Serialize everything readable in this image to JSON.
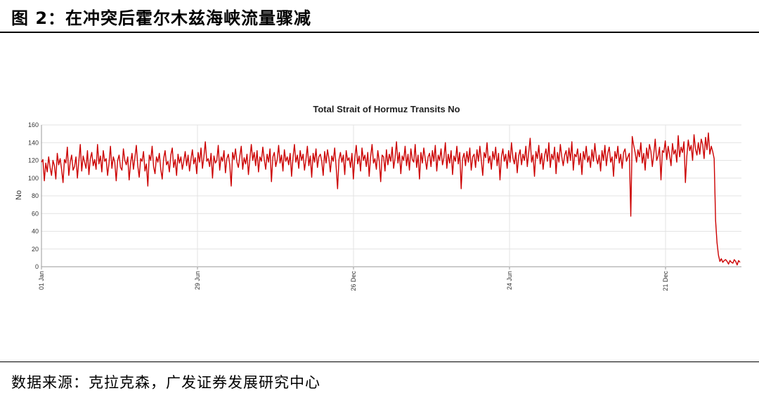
{
  "figure": {
    "title": "图 2：在冲突后霍尔木兹海峡流量骤减",
    "source": "数据来源：克拉克森，广发证券发展研究中心"
  },
  "chart_data": {
    "type": "line",
    "title": "Total Strait of Hormuz Transits No",
    "xlabel": "",
    "ylabel": "No",
    "ylim": [
      0,
      160
    ],
    "y_ticks": [
      0,
      20,
      40,
      60,
      80,
      100,
      120,
      140,
      160
    ],
    "x_ticks": [
      "01 Jan",
      "29 Jun",
      "26 Dec",
      "24 Jun",
      "21 Dec"
    ],
    "grid": true,
    "line_color": "#cc0000",
    "series": [
      {
        "values": [
          118,
          121,
          97,
          117,
          107,
          124,
          112,
          103,
          120,
          114,
          99,
          128,
          115,
          122,
          110,
          95,
          121,
          117,
          135,
          103,
          118,
          126,
          109,
          113,
          124,
          100,
          119,
          138,
          108,
          125,
          118,
          111,
          131,
          104,
          122,
          129,
          114,
          121,
          110,
          138,
          116,
          125,
          107,
          131,
          119,
          122,
          103,
          117,
          136,
          111,
          124,
          118,
          97,
          120,
          126,
          112,
          109,
          133,
          120,
          115,
          124,
          98,
          117,
          128,
          110,
          123,
          137,
          114,
          101,
          122,
          119,
          130,
          108,
          116,
          91,
          126,
          120,
          136,
          113,
          105,
          124,
          118,
          128,
          110,
          99,
          122,
          131,
          115,
          119,
          107,
          126,
          134,
          112,
          121,
          103,
          127,
          117,
          124,
          110,
          119,
          130,
          114,
          126,
          108,
          121,
          132,
          116,
          123,
          105,
          129,
          118,
          134,
          111,
          124,
          141,
          119,
          122,
          113,
          128,
          100,
          125,
          117,
          120,
          137,
          109,
          124,
          119,
          131,
          106,
          122,
          127,
          115,
          91,
          129,
          121,
          133,
          118,
          112,
          125,
          136,
          110,
          123,
          116,
          127,
          104,
          122,
          138,
          120,
          129,
          114,
          131,
          107,
          124,
          119,
          135,
          121,
          110,
          127,
          118,
          133,
          96,
          124,
          129,
          113,
          121,
          137,
          117,
          126,
          108,
          132,
          119,
          124,
          115,
          128,
          102,
          123,
          138,
          118,
          126,
          111,
          131,
          120,
          127,
          109,
          121,
          136,
          114,
          125,
          101,
          128,
          118,
          133,
          112,
          124,
          127,
          119,
          103,
          130,
          117,
          132,
          122,
          107,
          125,
          119,
          134,
          113,
          88,
          121,
          129,
          118,
          126,
          104,
          131,
          120,
          123,
          112,
          128,
          99,
          123,
          137,
          116,
          125,
          108,
          134,
          120,
          126,
          113,
          129,
          102,
          124,
          138,
          117,
          122,
          110,
          131,
          119,
          96,
          126,
          124,
          108,
          132,
          115,
          127,
          119,
          135,
          111,
          123,
          141,
          117,
          129,
          105,
          125,
          120,
          136,
          114,
          127,
          109,
          133,
          121,
          118,
          138,
          112,
          126,
          99,
          129,
          117,
          134,
          122,
          110,
          124,
          128,
          113,
          131,
          119,
          137,
          108,
          126,
          120,
          133,
          115,
          123,
          140,
          111,
          127,
          117,
          131,
          104,
          125,
          119,
          136,
          116,
          129,
          88,
          122,
          128,
          114,
          130,
          118,
          134,
          109,
          124,
          127,
          112,
          132,
          119,
          136,
          120,
          103,
          129,
          123,
          140,
          117,
          125,
          110,
          130,
          121,
          135,
          114,
          128,
          98,
          124,
          133,
          119,
          127,
          111,
          131,
          118,
          140,
          123,
          116,
          129,
          106,
          125,
          132,
          115,
          127,
          120,
          136,
          113,
          129,
          145,
          118,
          126,
          102,
          130,
          122,
          137,
          116,
          128,
          110,
          125,
          133,
          119,
          140,
          112,
          127,
          121,
          135,
          105,
          129,
          118,
          138,
          124,
          114,
          126,
          131,
          117,
          134,
          120,
          141,
          109,
          127,
          124,
          133,
          115,
          128,
          104,
          130,
          121,
          136,
          118,
          125,
          112,
          132,
          119,
          139,
          123,
          116,
          126,
          108,
          131,
          120,
          137,
          114,
          128,
          135,
          118,
          124,
          102,
          130,
          122,
          136,
          117,
          127,
          111,
          129,
          133,
          119,
          124,
          128,
          57,
          147,
          137,
          129,
          118,
          132,
          124,
          140,
          117,
          128,
          109,
          134,
          122,
          138,
          130,
          113,
          127,
          144,
          120,
          125,
          135,
          98,
          131,
          129,
          142,
          121,
          136,
          126,
          114,
          139,
          127,
          132,
          118,
          148,
          124,
          135,
          129,
          141,
          95,
          125,
          143,
          131,
          137,
          120,
          149,
          133,
          126,
          140,
          127,
          144,
          138,
          122,
          146,
          132,
          151,
          127,
          136,
          130,
          122,
          52,
          27,
          13,
          6,
          9,
          5,
          7,
          8,
          6,
          3,
          7,
          5,
          4,
          8,
          6,
          2,
          7,
          5
        ],
        "days_note": ""
      }
    ]
  }
}
